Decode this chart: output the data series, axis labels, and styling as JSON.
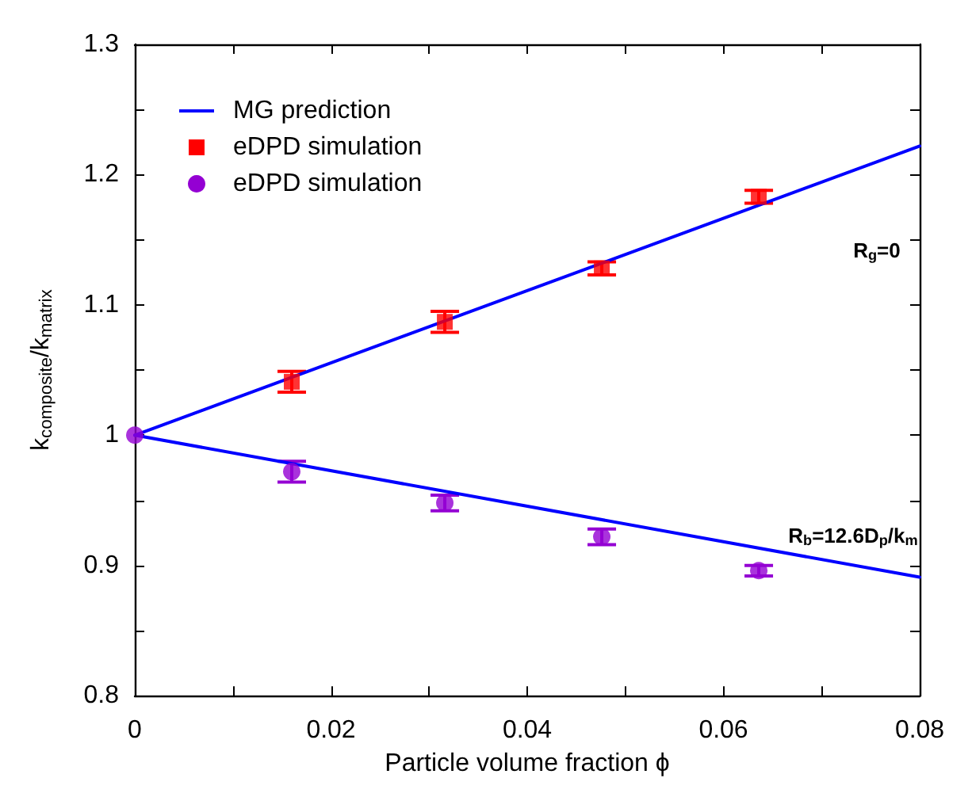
{
  "chart_data": {
    "type": "scatter",
    "xlabel": "Particle volume fraction ϕ",
    "ylabel": "k$_{composite}$/k$_{matrix}$",
    "xlim": [
      0,
      0.08
    ],
    "ylim": [
      0.8,
      1.3
    ],
    "xticks": [
      0,
      {
        "value": 0.01,
        "label": null
      },
      0.02,
      {
        "value": 0.03,
        "label": null
      },
      0.04,
      {
        "value": 0.05,
        "label": null
      },
      0.06,
      {
        "value": 0.07,
        "label": null
      },
      0.08
    ],
    "yticks": [
      0.8,
      {
        "value": 0.85,
        "label": null
      },
      0.9,
      {
        "value": 0.95,
        "label": null
      },
      1,
      {
        "value": 1.05,
        "label": null
      },
      1.1,
      {
        "value": 1.15,
        "label": null
      },
      1.2,
      {
        "value": 1.25,
        "label": null
      },
      1.3
    ],
    "grid": false,
    "legend": "top left",
    "series": [
      {
        "name": "MG prediction",
        "type": "line",
        "color": "#0000ff",
        "marker": "none",
        "line_style": "solid",
        "x": [
          0,
          0.08
        ],
        "values": [
          1,
          1.222
        ]
      },
      {
        "type": "line",
        "color": "#0000ff",
        "marker": "none",
        "line_style": "solid",
        "x": [
          0,
          0.08
        ],
        "values": [
          1,
          0.891
        ]
      },
      {
        "name": "eDPD simulation",
        "color": "#ff0000",
        "marker": "square",
        "x": [
          0.016,
          0.0316,
          0.0476,
          0.0636
        ],
        "values": [
          1.041,
          1.087,
          1.128,
          1.183
        ],
        "errors": [
          0.008,
          0.008,
          0.005,
          0.005
        ]
      },
      {
        "name": "eDPD simulation",
        "color": "#9400d3",
        "marker": "circle",
        "x": [
          0,
          0.016,
          0.0316,
          0.0476,
          0.0636
        ],
        "values": [
          1,
          0.972,
          0.948,
          0.922,
          0.896
        ],
        "errors": [
          null,
          0.008,
          0.006,
          0.006,
          0.004
        ]
      }
    ],
    "annotations": [
      "R$_{g}$=0",
      "R$_{b}$=12.6D$_{p}$/k$_{m}$"
    ]
  }
}
